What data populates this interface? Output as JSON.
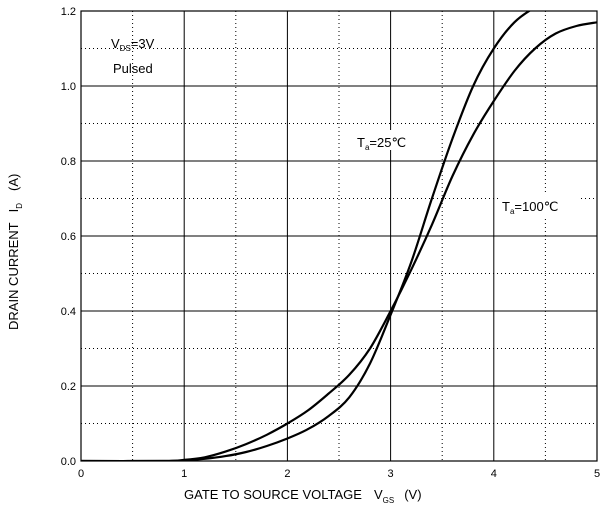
{
  "chart_data": {
    "type": "line",
    "xlabel": {
      "main": "GATE TO SOURCE VOLTAGE",
      "symbol": "V",
      "sub": "GS",
      "unit": "(V)"
    },
    "ylabel": {
      "main": "DRAIN CURRENT",
      "symbol": "I",
      "sub": "D",
      "unit": "(A)"
    },
    "xlim": [
      0,
      5
    ],
    "ylim": [
      0,
      1.2
    ],
    "x_ticks": [
      "0",
      "1",
      "2",
      "3",
      "4",
      "5"
    ],
    "y_ticks": [
      "0.0",
      "0.2",
      "0.4",
      "0.6",
      "0.8",
      "1.0",
      "1.2"
    ],
    "grid": {
      "major": true,
      "minor_dotted": true
    },
    "conditions": {
      "vds_symbol": "V",
      "vds_sub": "DS",
      "vds_value": "=3V",
      "mode": "Pulsed"
    },
    "series": [
      {
        "label_symbol": "T",
        "label_sub": "a",
        "label_value": "=25℃",
        "x": [
          0,
          0.8,
          1.0,
          1.2,
          1.4,
          1.6,
          1.8,
          2.0,
          2.2,
          2.4,
          2.6,
          2.8,
          3.0,
          3.2,
          3.4,
          3.6,
          3.8,
          4.0,
          4.2,
          4.4,
          4.5
        ],
        "y": [
          0,
          0,
          0.002,
          0.006,
          0.013,
          0.024,
          0.04,
          0.06,
          0.085,
          0.12,
          0.17,
          0.26,
          0.39,
          0.53,
          0.7,
          0.86,
          1.0,
          1.1,
          1.17,
          1.21,
          1.22
        ]
      },
      {
        "label_symbol": "T",
        "label_sub": "a",
        "label_value": "=100℃",
        "x": [
          0,
          0.8,
          1.0,
          1.2,
          1.4,
          1.6,
          1.8,
          2.0,
          2.2,
          2.4,
          2.6,
          2.8,
          3.0,
          3.2,
          3.4,
          3.6,
          3.8,
          4.0,
          4.2,
          4.4,
          4.6,
          4.8,
          5.0
        ],
        "y": [
          0,
          0,
          0.003,
          0.01,
          0.025,
          0.045,
          0.07,
          0.1,
          0.135,
          0.18,
          0.23,
          0.3,
          0.4,
          0.51,
          0.63,
          0.76,
          0.87,
          0.96,
          1.04,
          1.1,
          1.14,
          1.16,
          1.17
        ]
      }
    ]
  }
}
